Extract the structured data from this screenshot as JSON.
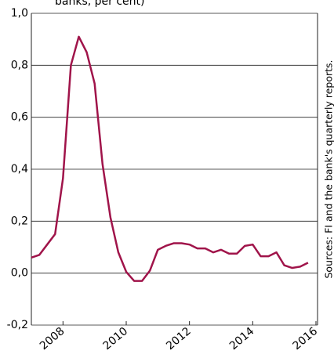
{
  "chart_data": {
    "type": "line",
    "title": "banks, per cent)",
    "source": "Sources: FI and the bank's quarterly reports.",
    "x": [
      2007,
      2007.25,
      2007.5,
      2007.75,
      2008,
      2008.25,
      2008.5,
      2008.75,
      2009,
      2009.25,
      2009.5,
      2009.75,
      2010,
      2010.25,
      2010.5,
      2010.75,
      2011,
      2011.25,
      2011.5,
      2011.75,
      2012,
      2012.25,
      2012.5,
      2012.75,
      2013,
      2013.25,
      2013.5,
      2013.75,
      2014,
      2014.25,
      2014.5,
      2014.75,
      2015,
      2015.25,
      2015.5,
      2015.75
    ],
    "series": [
      {
        "name": null,
        "color": "#a0144a",
        "values": [
          0.06,
          0.07,
          0.11,
          0.15,
          0.365,
          0.8,
          0.91,
          0.85,
          0.73,
          0.42,
          0.215,
          0.08,
          0.005,
          -0.03,
          -0.03,
          0.01,
          0.09,
          0.105,
          0.115,
          0.115,
          0.11,
          0.095,
          0.095,
          0.08,
          0.09,
          0.075,
          0.075,
          0.105,
          0.11,
          0.065,
          0.065,
          0.08,
          0.03,
          0.02,
          0.025,
          0.04
        ]
      }
    ],
    "xlim": [
      2007,
      2016.05
    ],
    "xticks": [
      2008,
      2010,
      2012,
      2014,
      2016
    ],
    "ylim": [
      -0.2,
      1.0
    ],
    "yticks": [
      {
        "value": -0.2,
        "label": "-0,2"
      },
      {
        "value": 0,
        "label": "0,0"
      },
      {
        "value": 0.2,
        "label": "0,2"
      },
      {
        "value": 0.4,
        "label": "0,4"
      },
      {
        "value": 0.6,
        "label": "0,6"
      },
      {
        "value": 0.8,
        "label": "0,8"
      },
      {
        "value": 1.0,
        "label": "1,0"
      }
    ],
    "grid": true
  }
}
